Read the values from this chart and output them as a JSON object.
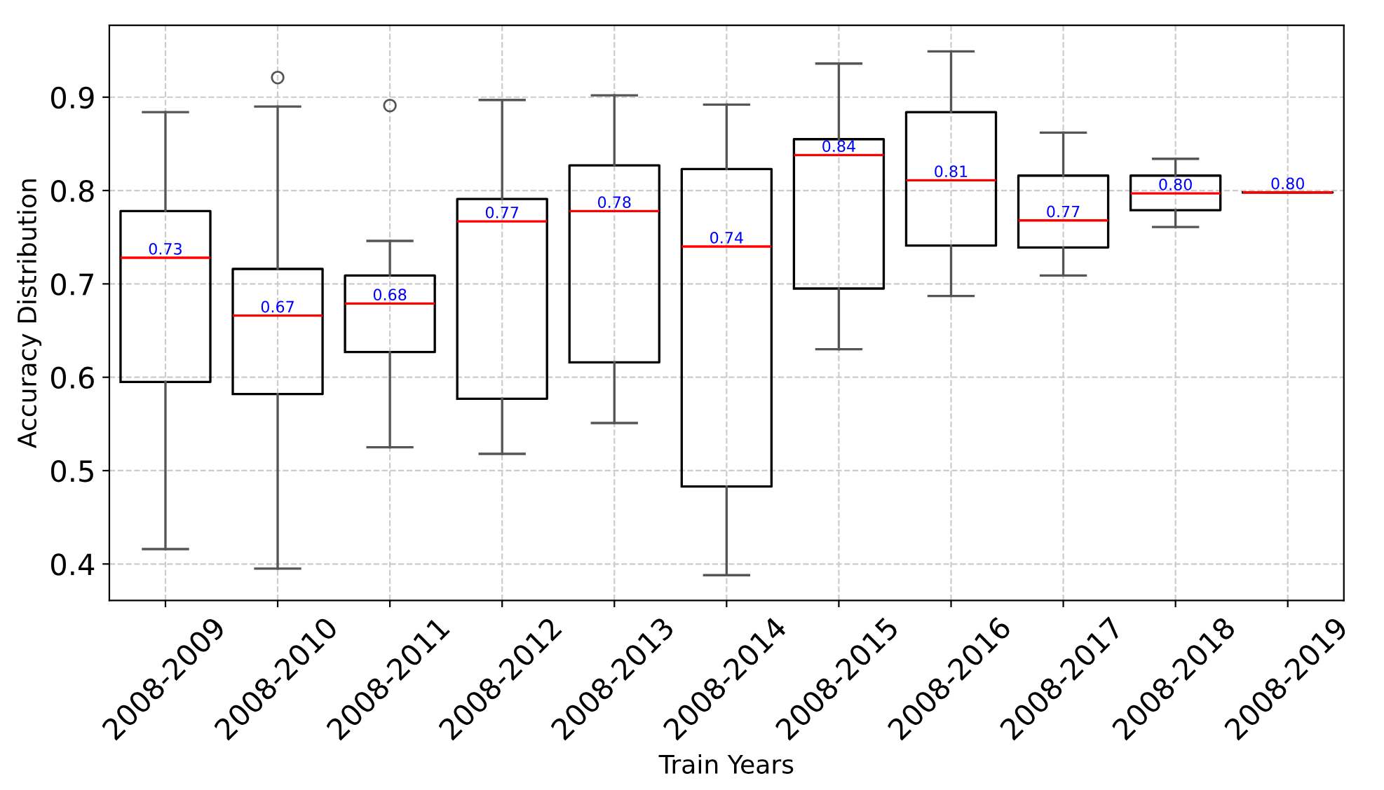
{
  "chart_data": {
    "type": "box",
    "xlabel": "Train Years",
    "ylabel": "Accuracy Distribution",
    "categories": [
      "2008-2009",
      "2008-2010",
      "2008-2011",
      "2008-2012",
      "2008-2013",
      "2008-2014",
      "2008-2015",
      "2008-2016",
      "2008-2017",
      "2008-2018",
      "2008-2019"
    ],
    "boxes": [
      {
        "low": 0.416,
        "q1": 0.595,
        "median": 0.728,
        "q3": 0.778,
        "high": 0.884
      },
      {
        "low": 0.395,
        "q1": 0.582,
        "median": 0.666,
        "q3": 0.716,
        "high": 0.89,
        "outliers": [
          0.921
        ]
      },
      {
        "low": 0.525,
        "q1": 0.627,
        "median": 0.679,
        "q3": 0.709,
        "high": 0.746,
        "outliers": [
          0.891
        ]
      },
      {
        "low": 0.518,
        "q1": 0.577,
        "median": 0.767,
        "q3": 0.791,
        "high": 0.897
      },
      {
        "low": 0.551,
        "q1": 0.616,
        "median": 0.778,
        "q3": 0.827,
        "high": 0.902
      },
      {
        "low": 0.388,
        "q1": 0.483,
        "median": 0.74,
        "q3": 0.823,
        "high": 0.892
      },
      {
        "low": 0.63,
        "q1": 0.695,
        "median": 0.838,
        "q3": 0.855,
        "high": 0.936
      },
      {
        "low": 0.687,
        "q1": 0.741,
        "median": 0.811,
        "q3": 0.884,
        "high": 0.949
      },
      {
        "low": 0.709,
        "q1": 0.739,
        "median": 0.768,
        "q3": 0.816,
        "high": 0.862
      },
      {
        "low": 0.761,
        "q1": 0.779,
        "median": 0.797,
        "q3": 0.816,
        "high": 0.834
      },
      {
        "low": 0.798,
        "q1": 0.798,
        "median": 0.798,
        "q3": 0.798,
        "high": 0.798
      }
    ],
    "value_labels": [
      "0.73",
      "0.67",
      "0.68",
      "0.77",
      "0.78",
      "0.74",
      "0.84",
      "0.81",
      "0.77",
      "0.80",
      "0.80"
    ],
    "ylim": [
      0.361,
      0.977
    ],
    "yticks": [
      0.4,
      0.5,
      0.6,
      0.7,
      0.8,
      0.9
    ],
    "grid": true
  }
}
